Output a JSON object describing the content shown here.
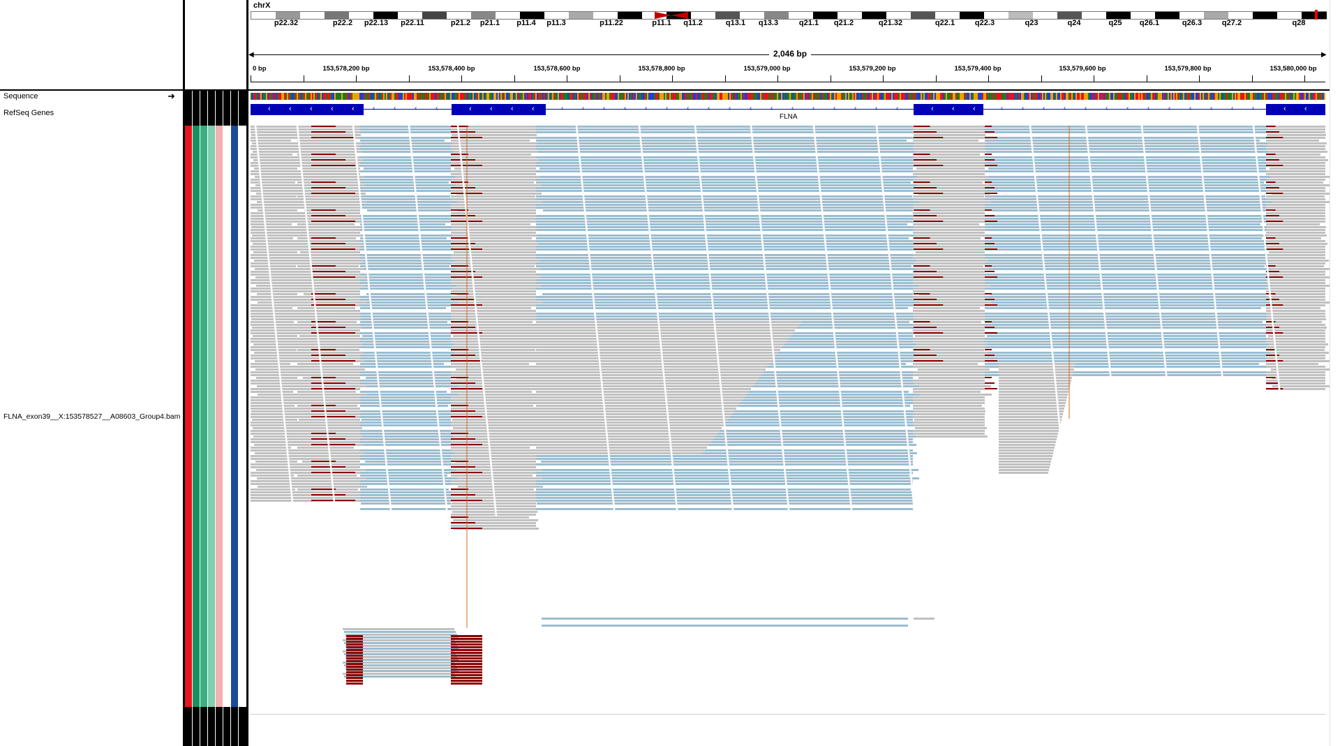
{
  "chromosome": {
    "name": "chrX",
    "bands": [
      "p22.32",
      "p22.2",
      "p22.13",
      "p22.11",
      "p21.2",
      "p21.1",
      "p11.4",
      "p11.3",
      "p11.22",
      "p11.1",
      "q11.2",
      "q13.1",
      "q13.3",
      "q21.1",
      "q21.2",
      "q21.32",
      "q22.1",
      "q22.3",
      "q23",
      "q24",
      "q25",
      "q26.1",
      "q26.3",
      "q27.2",
      "q28"
    ]
  },
  "ruler": {
    "span_label": "2,046 bp",
    "start_label": "0 bp",
    "ticks": [
      "153,578,200 bp",
      "153,578,400 bp",
      "153,578,600 bp",
      "153,578,800 bp",
      "153,579,000 bp",
      "153,579,200 bp",
      "153,579,400 bp",
      "153,579,600 bp",
      "153,579,800 bp",
      "153,580,000 bp"
    ]
  },
  "tracks": {
    "sequence": "Sequence",
    "refseq": "RefSeq Genes",
    "bam": "FLNA_exon39__X:153578527__A08603_Group4.bam",
    "gene_name": "FLNA"
  },
  "attribute_colors": [
    "#e8141c",
    "#1a9060",
    "#3caf80",
    "#7fcfb0",
    "#f5b0b0",
    "#ffffff",
    "#1c4a9c"
  ],
  "read_colors": {
    "default": "#c0c0c0",
    "insert_soft_clip": "#9bbdd0",
    "mismatch": "#8b0000",
    "sequence_palette": [
      "#e8141c",
      "#1c7d1c",
      "#2040d0",
      "#f0a000"
    ]
  }
}
